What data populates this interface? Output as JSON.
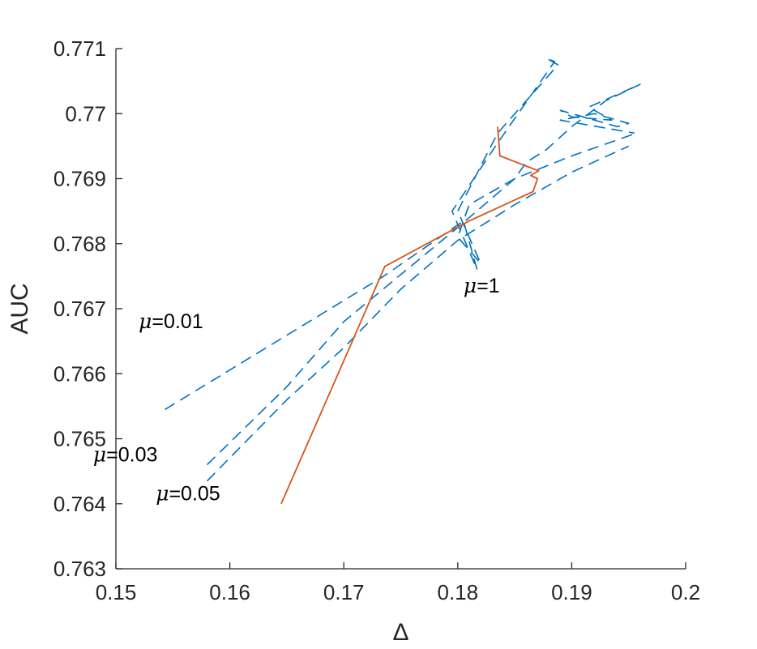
{
  "chart_data": {
    "type": "line",
    "title": "",
    "xlabel": "Δ",
    "ylabel": "AUC",
    "xlim": [
      0.15,
      0.2
    ],
    "ylim": [
      0.763,
      0.771
    ],
    "xticks": [
      0.15,
      0.16,
      0.17,
      0.18,
      0.19,
      0.2
    ],
    "xtick_labels": [
      "0.15",
      "0.16",
      "0.17",
      "0.18",
      "0.19",
      "0.2"
    ],
    "yticks": [
      0.763,
      0.764,
      0.765,
      0.766,
      0.767,
      0.768,
      0.769,
      0.77,
      0.771
    ],
    "ytick_labels": [
      "0.763",
      "0.764",
      "0.765",
      "0.766",
      "0.767",
      "0.768",
      "0.769",
      "0.77",
      "0.771"
    ],
    "grid": false,
    "colors": {
      "dashed": "#0072BD",
      "solid": "#D95319",
      "axis": "#262626"
    },
    "series": [
      {
        "style": "dashed",
        "color": "#0072BD",
        "x": [
          0.1543,
          0.1735,
          0.1805,
          0.1817,
          0.1795,
          0.1835,
          0.1885,
          0.1878,
          0.1888,
          0.1835,
          0.18,
          0.182,
          0.18,
          0.181,
          0.182,
          0.185,
          0.186,
          0.1878,
          0.19,
          0.193,
          0.196,
          0.1915,
          0.1935,
          0.19,
          0.189,
          0.194,
          0.195,
          0.192,
          0.189,
          0.1955
        ],
        "y": [
          0.76545,
          0.7675,
          0.76835,
          0.7676,
          0.7685,
          0.76955,
          0.7708,
          0.77085,
          0.77075,
          0.7697,
          0.7685,
          0.7677,
          0.7681,
          0.7686,
          0.7687,
          0.769,
          0.76925,
          0.76945,
          0.7698,
          0.7702,
          0.77045,
          0.7701,
          0.7699,
          0.76995,
          0.77005,
          0.7698,
          0.76985,
          0.77,
          0.7699,
          0.7697
        ]
      },
      {
        "style": "dashed",
        "color": "#0072BD",
        "x": [
          0.158,
          0.165,
          0.17,
          0.18,
          0.185,
          0.19,
          0.1957
        ],
        "y": [
          0.7646,
          0.7658,
          0.7668,
          0.76825,
          0.769,
          0.76935,
          0.7697
        ]
      },
      {
        "style": "dashed",
        "color": "#0072BD",
        "x": [
          0.158,
          0.165,
          0.17,
          0.175,
          0.18,
          0.185,
          0.19,
          0.195
        ],
        "y": [
          0.76435,
          0.7656,
          0.7664,
          0.7673,
          0.76805,
          0.7686,
          0.7691,
          0.7695
        ]
      },
      {
        "style": "solid",
        "color": "#D95319",
        "x": [
          0.1645,
          0.1705,
          0.1736,
          0.181,
          0.1866,
          0.187,
          0.1864,
          0.1871,
          0.1837,
          0.1835
        ],
        "y": [
          0.764,
          0.7664,
          0.76765,
          0.76835,
          0.7688,
          0.769,
          0.76905,
          0.76912,
          0.76935,
          0.7698
        ]
      }
    ],
    "annotations": [
      {
        "mu": "μ",
        "text": "=0.01",
        "x": 0.152,
        "y": 0.7667
      },
      {
        "mu": "μ",
        "text": "=0.03",
        "x": 0.148,
        "y": 0.76465
      },
      {
        "mu": "μ",
        "text": "=0.05",
        "x": 0.1535,
        "y": 0.76405
      },
      {
        "mu": "μ",
        "text": "=1",
        "x": 0.1805,
        "y": 0.76725
      }
    ]
  }
}
